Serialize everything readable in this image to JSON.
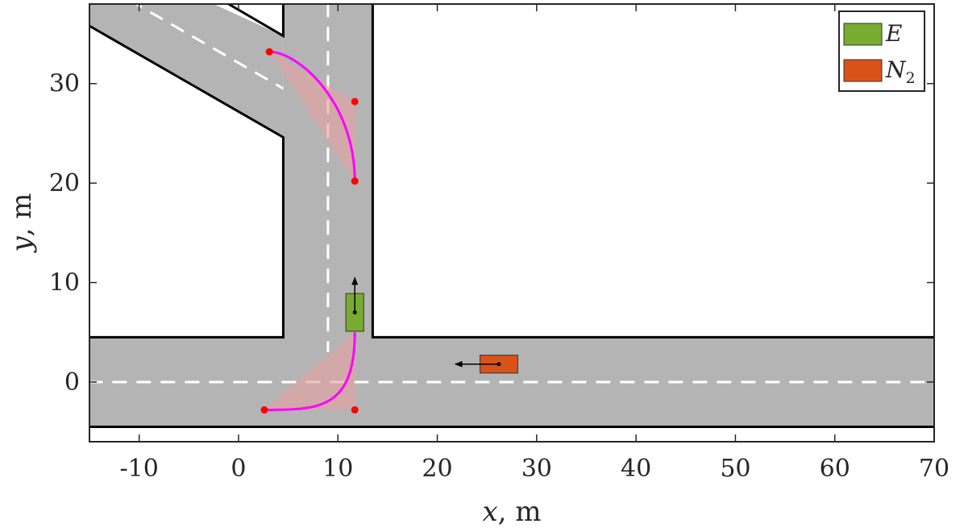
{
  "chart_data": {
    "type": "scatter",
    "title": "",
    "xlabel": "x, m",
    "ylabel": "y, m",
    "xlim": [
      -15,
      70
    ],
    "ylim": [
      -6,
      38
    ],
    "xticks": [
      -10,
      0,
      10,
      20,
      30,
      40,
      50,
      60,
      70
    ],
    "yticks": [
      0,
      10,
      20,
      30
    ],
    "xtick_labels": [
      "-10",
      "0",
      "10",
      "20",
      "30",
      "40",
      "50",
      "60",
      "70"
    ],
    "ytick_labels": [
      "0",
      "10",
      "20",
      "30"
    ],
    "grid": false,
    "legend_position": "top-right",
    "road": {
      "color": "#b4b4b4",
      "edge_color": "#000000",
      "lane_mark_color": "#ffffff",
      "horizontal_road_y": [
        -4.5,
        4.5
      ],
      "vertical_road_x": [
        4.5,
        13.5
      ],
      "horizontal_centerline_y": 0,
      "vertical_centerline_x": 9
    },
    "vehicles": [
      {
        "name": "E",
        "label_main": "E",
        "label_sub": "",
        "color": "#77ac30",
        "center": [
          11.7,
          7
        ],
        "length": 3.8,
        "width": 1.8,
        "orientation": "vertical",
        "heading": "up",
        "arrow_end": [
          11.7,
          10.5
        ]
      },
      {
        "name": "N2",
        "label_main": "N",
        "label_sub": "2",
        "color": "#d95319",
        "center": [
          26.2,
          1.8
        ],
        "length": 3.8,
        "width": 1.8,
        "orientation": "horizontal",
        "heading": "left",
        "arrow_end": [
          21.8,
          1.8
        ]
      }
    ],
    "trajectories": [
      {
        "name": "lower-curve",
        "color": "#ff00ff",
        "shade_color": "#e8a0a0",
        "p0": [
          11.7,
          5
        ],
        "c1": [
          11.7,
          -2.8
        ],
        "c2": [
          8,
          -2.8
        ],
        "p1": [
          2.6,
          -2.8
        ],
        "shade_polygon": [
          [
            11.7,
            5
          ],
          [
            11.7,
            -2.8
          ],
          [
            2.6,
            -2.8
          ]
        ]
      },
      {
        "name": "upper-curve",
        "color": "#ff00ff",
        "shade_color": "#e8a0a0",
        "p0": [
          11.7,
          20.2
        ],
        "c1": [
          11.7,
          28.2
        ],
        "c2": [
          6,
          33.2
        ],
        "p1": [
          3.1,
          33.2
        ],
        "shade_polygon": [
          [
            11.7,
            20.2
          ],
          [
            11.7,
            28.2
          ],
          [
            3.1,
            33.2
          ]
        ]
      }
    ],
    "points": [
      {
        "name": "lower-start",
        "x": 2.6,
        "y": -2.8
      },
      {
        "name": "lower-control",
        "x": 11.7,
        "y": -2.8
      },
      {
        "name": "upper-start",
        "x": 11.7,
        "y": 20.2
      },
      {
        "name": "upper-control",
        "x": 11.7,
        "y": 28.2
      },
      {
        "name": "upper-end",
        "x": 3.1,
        "y": 33.2
      }
    ],
    "point_color": "#ff0000",
    "legend": [
      {
        "main": "E",
        "sub": "",
        "color": "#77ac30"
      },
      {
        "main": "N",
        "sub": "2",
        "color": "#d95319"
      }
    ]
  }
}
